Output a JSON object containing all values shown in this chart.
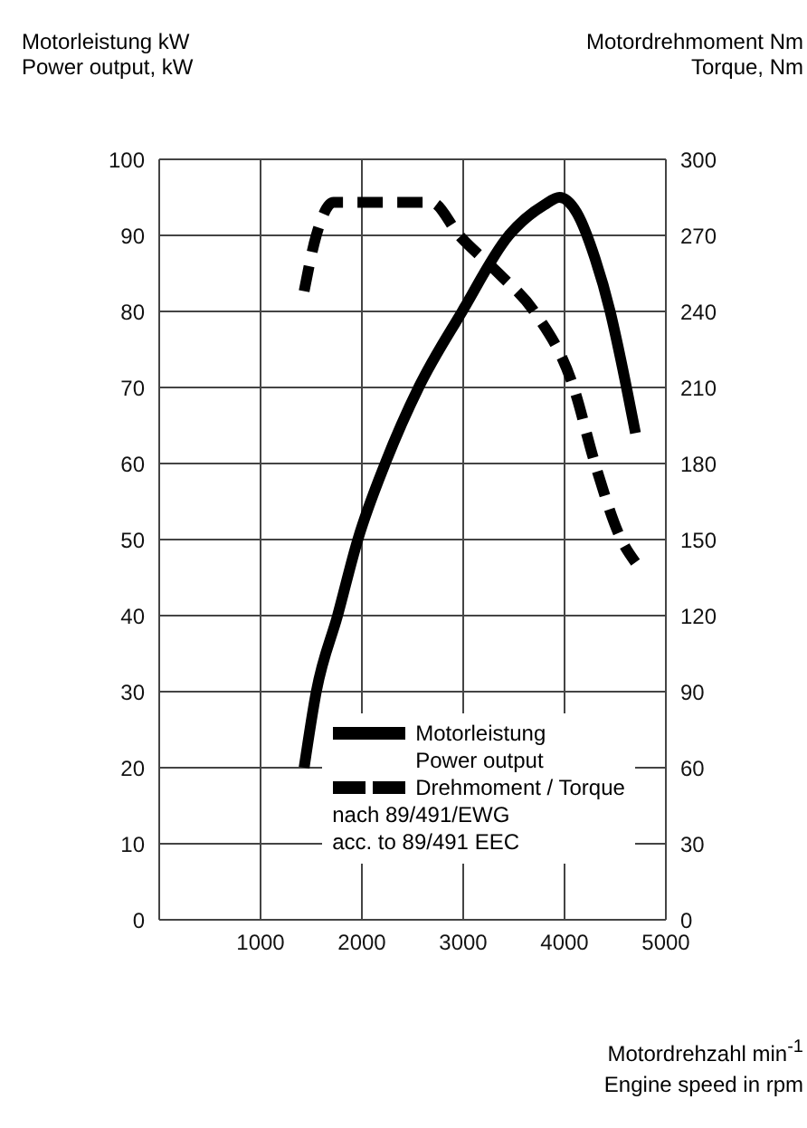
{
  "chart_data": {
    "type": "line",
    "ylabel": "Motorleistung kW\nPower output, kW",
    "y2label": "Motordrehmoment Nm\nTorque, Nm",
    "xlabel": "Motordrehzahl min$^{-1}$\nEngine speed in rpm",
    "xlim": [
      0,
      5000
    ],
    "xticks": [
      {
        "value": 0,
        "label": null
      },
      1000,
      2000,
      3000,
      4000,
      5000
    ],
    "ylim": [
      0,
      100
    ],
    "yticks": [
      0,
      10,
      20,
      30,
      40,
      50,
      60,
      70,
      80,
      90,
      100
    ],
    "y2lim": [
      0,
      300
    ],
    "y2ticks": [
      0,
      30,
      60,
      90,
      120,
      150,
      180,
      210,
      240,
      270,
      300
    ],
    "grid": true,
    "legend": "bottom",
    "annotations": [
      "nach 89/491/EWG",
      "acc. to 89/491 EEC"
    ],
    "series": [
      {
        "name": "Motorleistung\nPower output",
        "color": "#000000",
        "line_style": "solid",
        "x": [
          1430,
          1550,
          1760,
          1960,
          2230,
          2560,
          2990,
          3450,
          3800,
          3950,
          4120,
          4300,
          4450,
          4550,
          4700
        ],
        "values": [
          20,
          30,
          40,
          50,
          60,
          70,
          80,
          90,
          94,
          95,
          93,
          87,
          80,
          74,
          64
        ]
      },
      {
        "name": "Drehmoment / Torque",
        "color": "#000000",
        "line_style": "dashed",
        "axis": "y2",
        "x": [
          1430,
          1550,
          1720,
          2000,
          2400,
          2690,
          2960,
          3350,
          3700,
          4090,
          4300,
          4560,
          4700
        ],
        "values": [
          248,
          270,
          283,
          283,
          283,
          283,
          270,
          255,
          240,
          210,
          180,
          150,
          141
        ]
      }
    ]
  }
}
